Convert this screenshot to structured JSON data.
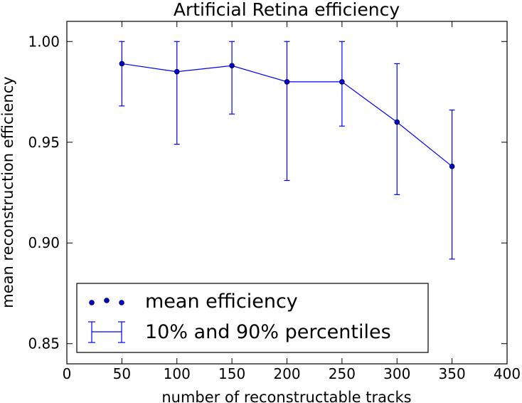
{
  "chart_data": {
    "type": "line",
    "title": "Artificial Retina efficiency",
    "xlabel": "number of reconstructable tracks",
    "ylabel": "mean reconstruction efficiency",
    "xlim": [
      0,
      400
    ],
    "ylim": [
      0.84,
      1.01
    ],
    "grid": false,
    "x_ticks": [
      0,
      50,
      100,
      150,
      200,
      250,
      300,
      350,
      400
    ],
    "x_tick_labels": [
      "0",
      "50",
      "100",
      "150",
      "200",
      "250",
      "300",
      "350",
      "400"
    ],
    "y_ticks": [
      0.85,
      0.9,
      0.95,
      1.0
    ],
    "y_tick_labels": [
      "0.85",
      "0.90",
      "0.95",
      "1.00"
    ],
    "series": [
      {
        "name": "mean efficiency",
        "color": "#0000ff",
        "marker_color": "#0000cc",
        "x": [
          50,
          100,
          150,
          200,
          250,
          300,
          350
        ],
        "values": [
          0.989,
          0.985,
          0.988,
          0.98,
          0.98,
          0.96,
          0.938
        ],
        "lower": [
          0.968,
          0.949,
          0.964,
          0.931,
          0.958,
          0.924,
          0.892
        ],
        "upper": [
          1.0,
          1.0,
          1.0,
          1.0,
          1.0,
          0.989,
          0.966
        ]
      }
    ],
    "legend": {
      "placement": "lower-left",
      "entries": [
        "mean efficiency",
        "10% and 90% percentiles"
      ]
    }
  }
}
